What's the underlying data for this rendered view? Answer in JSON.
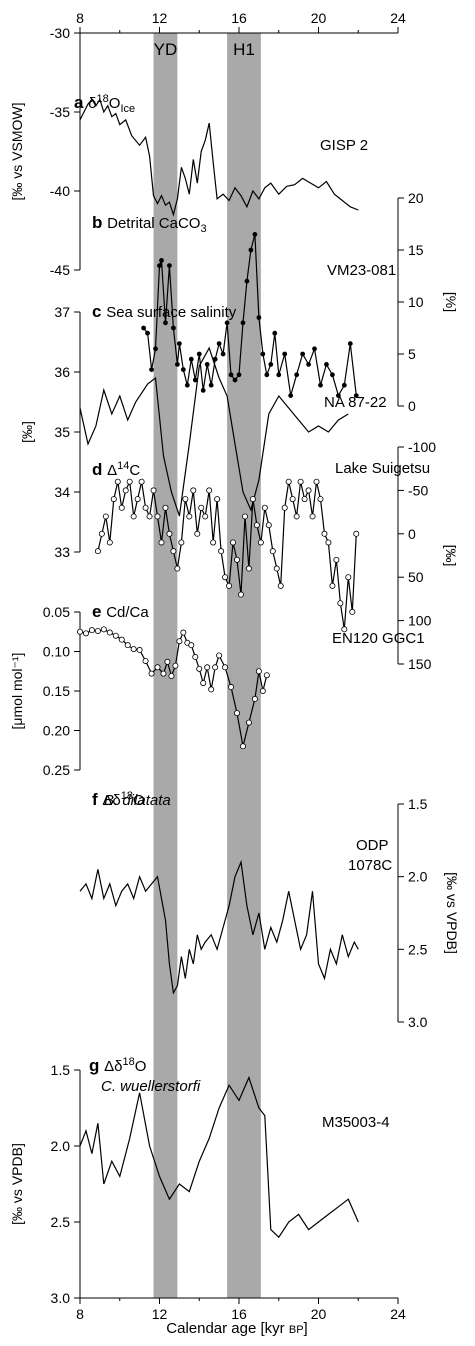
{
  "chart_data": {
    "type": "line",
    "xlabel_main": "Calendar age",
    "xlabel_unit": "[kyr",
    "xlabel_bp": "BP",
    "xlabel_close": "]",
    "xlim": [
      8,
      24
    ],
    "xticks": [
      "8",
      "12",
      "16",
      "20",
      "24"
    ],
    "bands": [
      {
        "label": "YD",
        "from": 11.7,
        "to": 12.9
      },
      {
        "label": "H1",
        "from": 15.4,
        "to": 17.1
      }
    ],
    "panels": [
      {
        "letter": "a",
        "title": "δ",
        "title_sup": "18",
        "title_main": "O",
        "title_sub": "Ice",
        "site": "GISP 2",
        "ylabel": "[‰ vs VSMOW]",
        "axis_side": "left",
        "ylim": [
          -45,
          -30
        ],
        "yticks": [
          "-30",
          "-35",
          "-40",
          "-45"
        ],
        "markers": false,
        "x": [
          8.0,
          8.2,
          8.4,
          8.6,
          8.8,
          9.0,
          9.2,
          9.4,
          9.6,
          9.8,
          10.0,
          10.3,
          10.6,
          11.0,
          11.3,
          11.5,
          11.7,
          11.9,
          12.1,
          12.3,
          12.5,
          12.7,
          12.9,
          13.1,
          13.3,
          13.5,
          13.7,
          13.9,
          14.1,
          14.3,
          14.5,
          14.7,
          14.9,
          15.2,
          15.5,
          15.8,
          16.1,
          16.4,
          16.7,
          17.0,
          17.3,
          17.6,
          18.0,
          18.4,
          18.8,
          19.2,
          19.6,
          20.0,
          20.4,
          20.8,
          21.2,
          21.6,
          22.0
        ],
        "y": [
          -35.5,
          -35,
          -34.5,
          -34.2,
          -34.6,
          -34.2,
          -35,
          -34.6,
          -35.3,
          -35.1,
          -35.8,
          -35.5,
          -36.5,
          -37.1,
          -36.6,
          -37.8,
          -40.3,
          -40.8,
          -40.3,
          -40.9,
          -40.7,
          -41.5,
          -40.5,
          -38.5,
          -39.2,
          -40.2,
          -38.0,
          -39.5,
          -37.5,
          -36.8,
          -35.7,
          -38.2,
          -40.5,
          -40.2,
          -40.6,
          -39.8,
          -40.3,
          -41.0,
          -40.0,
          -40.5,
          -39.8,
          -39.5,
          -40.2,
          -39.7,
          -39.6,
          -39.2,
          -39.5,
          -39.8,
          -39.4,
          -40.2,
          -40.6,
          -41.0,
          -41.2
        ]
      },
      {
        "letter": "b",
        "title": "Detrital CaCO",
        "title_sub": "3",
        "site": "VM23-081",
        "ylabel": "[%]",
        "axis_side": "right",
        "ylim": [
          0,
          20
        ],
        "yticks": [
          "0",
          "5",
          "10",
          "15",
          "20"
        ],
        "markers": true,
        "x": [
          11.2,
          11.4,
          11.6,
          11.8,
          12.0,
          12.1,
          12.3,
          12.5,
          12.7,
          12.9,
          13.0,
          13.2,
          13.4,
          13.6,
          13.8,
          14.0,
          14.2,
          14.4,
          14.6,
          14.8,
          15.0,
          15.2,
          15.4,
          15.6,
          15.8,
          16.0,
          16.2,
          16.4,
          16.6,
          16.8,
          17.0,
          17.2,
          17.4,
          17.6,
          17.8,
          18.0,
          18.3,
          18.6,
          18.9,
          19.2,
          19.5,
          19.8,
          20.1,
          20.4,
          20.7,
          21.0,
          21.3,
          21.6,
          21.9
        ],
        "y": [
          7.5,
          7.0,
          3.5,
          5.5,
          13.5,
          14.0,
          8.0,
          13.5,
          7.5,
          4.0,
          6.0,
          3.5,
          2.0,
          4.5,
          2.5,
          5.0,
          1.5,
          4.0,
          2.0,
          4.5,
          6.0,
          5.0,
          8.0,
          3.0,
          2.5,
          3.0,
          8.0,
          12.0,
          15.0,
          16.5,
          8.5,
          5.0,
          3.0,
          4.0,
          7.0,
          3.0,
          5.0,
          1.0,
          3.0,
          5.0,
          4.0,
          5.5,
          2.0,
          4.0,
          3.0,
          1.0,
          2.0,
          6.0,
          1.0
        ]
      },
      {
        "letter": "c",
        "title": "Sea surface salinity",
        "site": "NA 87-22",
        "ylabel": "[‰]",
        "axis_side": "left",
        "ylim": [
          33,
          37
        ],
        "yticks": [
          "33",
          "34",
          "35",
          "36",
          "37"
        ],
        "markers": false,
        "x": [
          8.0,
          8.4,
          8.8,
          9.2,
          9.6,
          10.0,
          10.4,
          10.8,
          11.4,
          11.8,
          12.2,
          12.6,
          13.0,
          13.5,
          14.0,
          14.5,
          15.0,
          15.4,
          15.8,
          16.2,
          16.6,
          17.0,
          17.5,
          18.0,
          18.5,
          19.0,
          19.5,
          20.0,
          20.5,
          21.0,
          21.5
        ],
        "y": [
          35.4,
          34.8,
          35.1,
          35.7,
          35.3,
          35.6,
          35.2,
          35.5,
          35.8,
          35.9,
          34.6,
          34.0,
          33.6,
          34.8,
          36.1,
          36.4,
          35.9,
          35.6,
          34.8,
          34.0,
          33.7,
          34.2,
          35.3,
          35.6,
          35.4,
          35.2,
          35.0,
          35.1,
          35.0,
          35.2,
          35.3
        ]
      },
      {
        "letter": "d",
        "title": "Δ",
        "title_sup": "14",
        "title_main": "C",
        "site": "Lake Suigetsu",
        "ylabel": "[‰]",
        "axis_side": "right",
        "ylim": [
          -100,
          150
        ],
        "yticks": [
          "-100",
          "-50",
          "0",
          "50",
          "100",
          "150"
        ],
        "markers": true,
        "x": [
          8.9,
          9.1,
          9.3,
          9.5,
          9.7,
          9.9,
          10.1,
          10.3,
          10.5,
          10.7,
          10.9,
          11.1,
          11.3,
          11.5,
          11.7,
          11.9,
          12.1,
          12.3,
          12.5,
          12.7,
          12.9,
          13.1,
          13.3,
          13.5,
          13.7,
          13.9,
          14.1,
          14.3,
          14.5,
          14.7,
          14.9,
          15.1,
          15.3,
          15.5,
          15.7,
          15.9,
          16.1,
          16.3,
          16.5,
          16.7,
          16.9,
          17.1,
          17.3,
          17.5,
          17.7,
          17.9,
          18.1,
          18.3,
          18.5,
          18.7,
          18.9,
          19.1,
          19.3,
          19.5,
          19.7,
          19.9,
          20.1,
          20.3,
          20.5,
          20.7,
          20.9,
          21.1,
          21.3,
          21.5,
          21.7,
          21.9
        ],
        "y": [
          20,
          0,
          -20,
          10,
          -40,
          -60,
          -30,
          -50,
          -60,
          -20,
          -40,
          -60,
          -30,
          -20,
          -50,
          -20,
          10,
          -30,
          0,
          20,
          40,
          10,
          -40,
          -20,
          -50,
          0,
          -30,
          -20,
          -50,
          10,
          -40,
          20,
          50,
          60,
          10,
          30,
          70,
          -20,
          40,
          -40,
          -10,
          10,
          -30,
          -10,
          20,
          40,
          60,
          -30,
          -60,
          -40,
          -20,
          -60,
          -40,
          -50,
          -20,
          -60,
          -40,
          0,
          10,
          60,
          30,
          80,
          110,
          50,
          90,
          0
        ]
      },
      {
        "letter": "e",
        "title": "Cd/Ca",
        "site": "EN120 GGC1",
        "ylabel": "[μmol mol⁻¹]",
        "axis_side": "left",
        "ylim": [
          0.05,
          0.25
        ],
        "yticks": [
          "0.05",
          "0.10",
          "0.15",
          "0.20",
          "0.25"
        ],
        "markers": true,
        "x": [
          8.0,
          8.3,
          8.6,
          8.9,
          9.2,
          9.5,
          9.8,
          10.1,
          10.4,
          10.7,
          11.0,
          11.3,
          11.6,
          11.9,
          12.2,
          12.4,
          12.6,
          12.8,
          13.0,
          13.2,
          13.4,
          13.6,
          13.8,
          14.0,
          14.2,
          14.4,
          14.6,
          14.8,
          15.0,
          15.3,
          15.6,
          15.9,
          16.2,
          16.5,
          16.8,
          17.0,
          17.2,
          17.4
        ],
        "y": [
          0.075,
          0.077,
          0.073,
          0.074,
          0.072,
          0.076,
          0.08,
          0.085,
          0.092,
          0.097,
          0.098,
          0.112,
          0.128,
          0.12,
          0.128,
          0.113,
          0.131,
          0.118,
          0.087,
          0.076,
          0.089,
          0.092,
          0.107,
          0.122,
          0.14,
          0.12,
          0.148,
          0.12,
          0.105,
          0.12,
          0.145,
          0.178,
          0.22,
          0.19,
          0.16,
          0.125,
          0.15,
          0.13
        ]
      },
      {
        "letter": "f",
        "title": "Δδ",
        "title_sup": "18",
        "title_main": "O",
        "title_line2": "B. dilatata",
        "site": "ODP",
        "site_line2": "1078C",
        "ylabel": "[‰ vs VPDB]",
        "axis_side": "right",
        "ylim": [
          1.5,
          3.0
        ],
        "yticks": [
          "1.5",
          "2.0",
          "2.5",
          "3.0"
        ],
        "markers": false,
        "x": [
          8.0,
          8.3,
          8.6,
          8.9,
          9.2,
          9.5,
          9.8,
          10.1,
          10.4,
          10.7,
          11.0,
          11.3,
          11.6,
          11.9,
          12.1,
          12.3,
          12.5,
          12.7,
          12.9,
          13.1,
          13.3,
          13.5,
          13.7,
          13.9,
          14.1,
          14.3,
          14.6,
          14.9,
          15.2,
          15.5,
          15.8,
          16.1,
          16.4,
          16.7,
          17.0,
          17.3,
          17.6,
          17.9,
          18.2,
          18.5,
          18.8,
          19.1,
          19.4,
          19.7,
          20.0,
          20.3,
          20.6,
          20.9,
          21.2,
          21.5,
          21.8,
          22.0
        ],
        "y": [
          2.1,
          2.05,
          2.15,
          1.95,
          2.15,
          2.05,
          2.2,
          2.1,
          2.05,
          2.15,
          2.0,
          2.1,
          2.05,
          2.0,
          2.15,
          2.3,
          2.6,
          2.8,
          2.75,
          2.55,
          2.7,
          2.5,
          2.6,
          2.4,
          2.5,
          2.45,
          2.4,
          2.5,
          2.35,
          2.2,
          2.0,
          1.9,
          2.2,
          2.4,
          2.25,
          2.5,
          2.35,
          2.45,
          2.3,
          2.1,
          2.3,
          2.5,
          2.4,
          2.1,
          2.6,
          2.7,
          2.5,
          2.6,
          2.4,
          2.55,
          2.45,
          2.5
        ]
      },
      {
        "letter": "g",
        "title": "Δδ",
        "title_sup": "18",
        "title_main": "O",
        "title_line2": "C. wuellerstorfi",
        "site": "M35003-4",
        "ylabel": "[‰ vs VPDB]",
        "axis_side": "left",
        "ylim": [
          1.5,
          3.0
        ],
        "yticks": [
          "1.5",
          "2.0",
          "2.5",
          "3.0"
        ],
        "markers": false,
        "x": [
          8.0,
          8.3,
          8.6,
          8.9,
          9.2,
          9.6,
          10.0,
          10.5,
          11.0,
          11.5,
          12.0,
          12.5,
          13.0,
          13.5,
          14.0,
          14.5,
          15.0,
          15.5,
          16.0,
          16.5,
          17.0,
          17.3,
          17.6,
          18.0,
          18.5,
          19.0,
          19.5,
          20.0,
          20.5,
          21.0,
          21.5,
          22.0
        ],
        "y": [
          2.0,
          1.9,
          2.05,
          1.85,
          2.25,
          2.1,
          2.2,
          1.95,
          1.65,
          2.0,
          2.2,
          2.35,
          2.25,
          2.3,
          2.1,
          1.95,
          1.75,
          1.6,
          1.7,
          1.55,
          1.75,
          1.8,
          2.55,
          2.6,
          2.5,
          2.45,
          2.55,
          2.5,
          2.45,
          2.4,
          2.35,
          2.5
        ]
      }
    ]
  }
}
